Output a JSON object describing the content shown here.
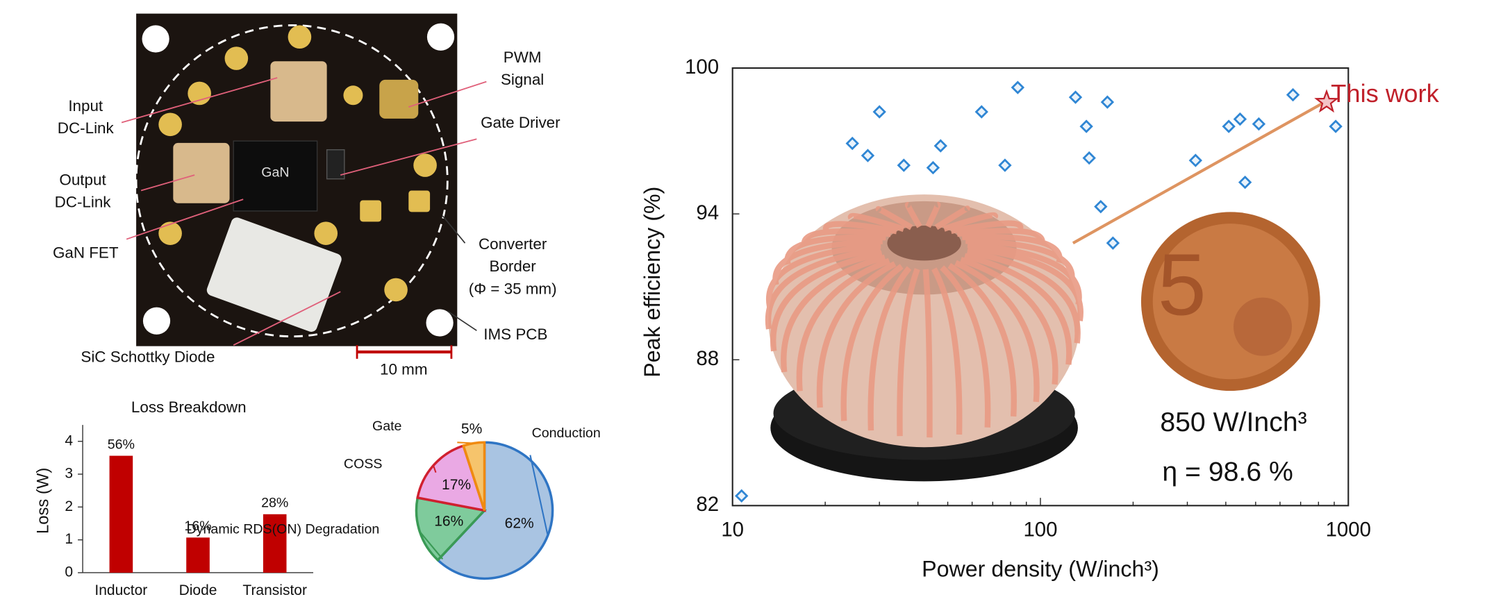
{
  "figure": {
    "labels": [
      {
        "lines": [
          "PWM",
          "Signal"
        ]
      },
      {
        "lines": [
          "Input",
          "DC-Link"
        ]
      },
      {
        "lines": [
          "Gate Driver"
        ]
      },
      {
        "lines": [
          "Output",
          "DC-Link"
        ]
      },
      {
        "lines": [
          "GaN FET"
        ]
      },
      {
        "lines": [
          "Converter",
          "Border"
        ]
      },
      {
        "lines": [
          "(Φ = 35 mm)"
        ]
      },
      {
        "lines": [
          "IMS PCB"
        ]
      },
      {
        "lines": [
          "SiC Schottky Diode"
        ]
      },
      {
        "lines": [
          "10 mm"
        ]
      }
    ]
  },
  "chart_data": [
    {
      "type": "bar",
      "title": "Loss Breakdown",
      "y_label": "Loss (W)",
      "categories": [
        "Inductor",
        "Diode",
        "Transistor"
      ],
      "values": [
        3.56,
        1.07,
        1.78
      ],
      "share_labels": [
        "56%",
        "16%",
        "28%"
      ],
      "color": "#c00000",
      "ylim": [
        0,
        4.5
      ],
      "yticks": [
        0,
        1,
        2,
        3,
        4
      ]
    },
    {
      "type": "pie",
      "categories": [
        "Conduction",
        "Dynamic RDS(ON) Degradation",
        "COSS",
        "Gate"
      ],
      "values": [
        62,
        16,
        17,
        5
      ],
      "value_labels": [
        "62%",
        "16%",
        "17%",
        "5%"
      ],
      "colors": [
        "#a9c4e2",
        "#7fcb9c",
        "#eaa9e4",
        "#f6c46c"
      ],
      "edge_colors": [
        "#2f75c4",
        "#3a9a55",
        "#d0202f",
        "#f08a10"
      ]
    },
    {
      "type": "scatter",
      "x_label": "Power density (W/inch³)",
      "y_label": "Peak efficiency (%)",
      "xscale": "log",
      "xlim": [
        10,
        1000
      ],
      "xticks": [
        10,
        100,
        1000
      ],
      "ylim": [
        82,
        100
      ],
      "yticks": [
        82,
        88,
        94,
        100
      ],
      "series": [
        {
          "color": "#2f86d4",
          "marker": "diamond",
          "x": [
            10.7,
            24.5,
            27.5,
            30,
            36,
            44.8,
            47.4,
            64.4,
            76.7,
            84.4,
            130,
            141,
            144,
            165,
            157,
            172,
            319,
            409,
            445,
            462,
            512,
            661,
            910
          ],
          "values": [
            82.4,
            96.9,
            96.4,
            98.2,
            96.0,
            95.9,
            96.8,
            98.2,
            96.0,
            99.2,
            98.8,
            97.6,
            96.3,
            98.6,
            94.3,
            92.8,
            96.2,
            97.6,
            97.9,
            95.3,
            97.7,
            98.9,
            97.6
          ]
        },
        {
          "name": "This work",
          "color": "#c0202a",
          "marker": "star",
          "x": [
            850
          ],
          "values": [
            98.6
          ]
        }
      ],
      "annotations": [
        "850 W/Inch³",
        "η = 98.6 %"
      ]
    }
  ]
}
